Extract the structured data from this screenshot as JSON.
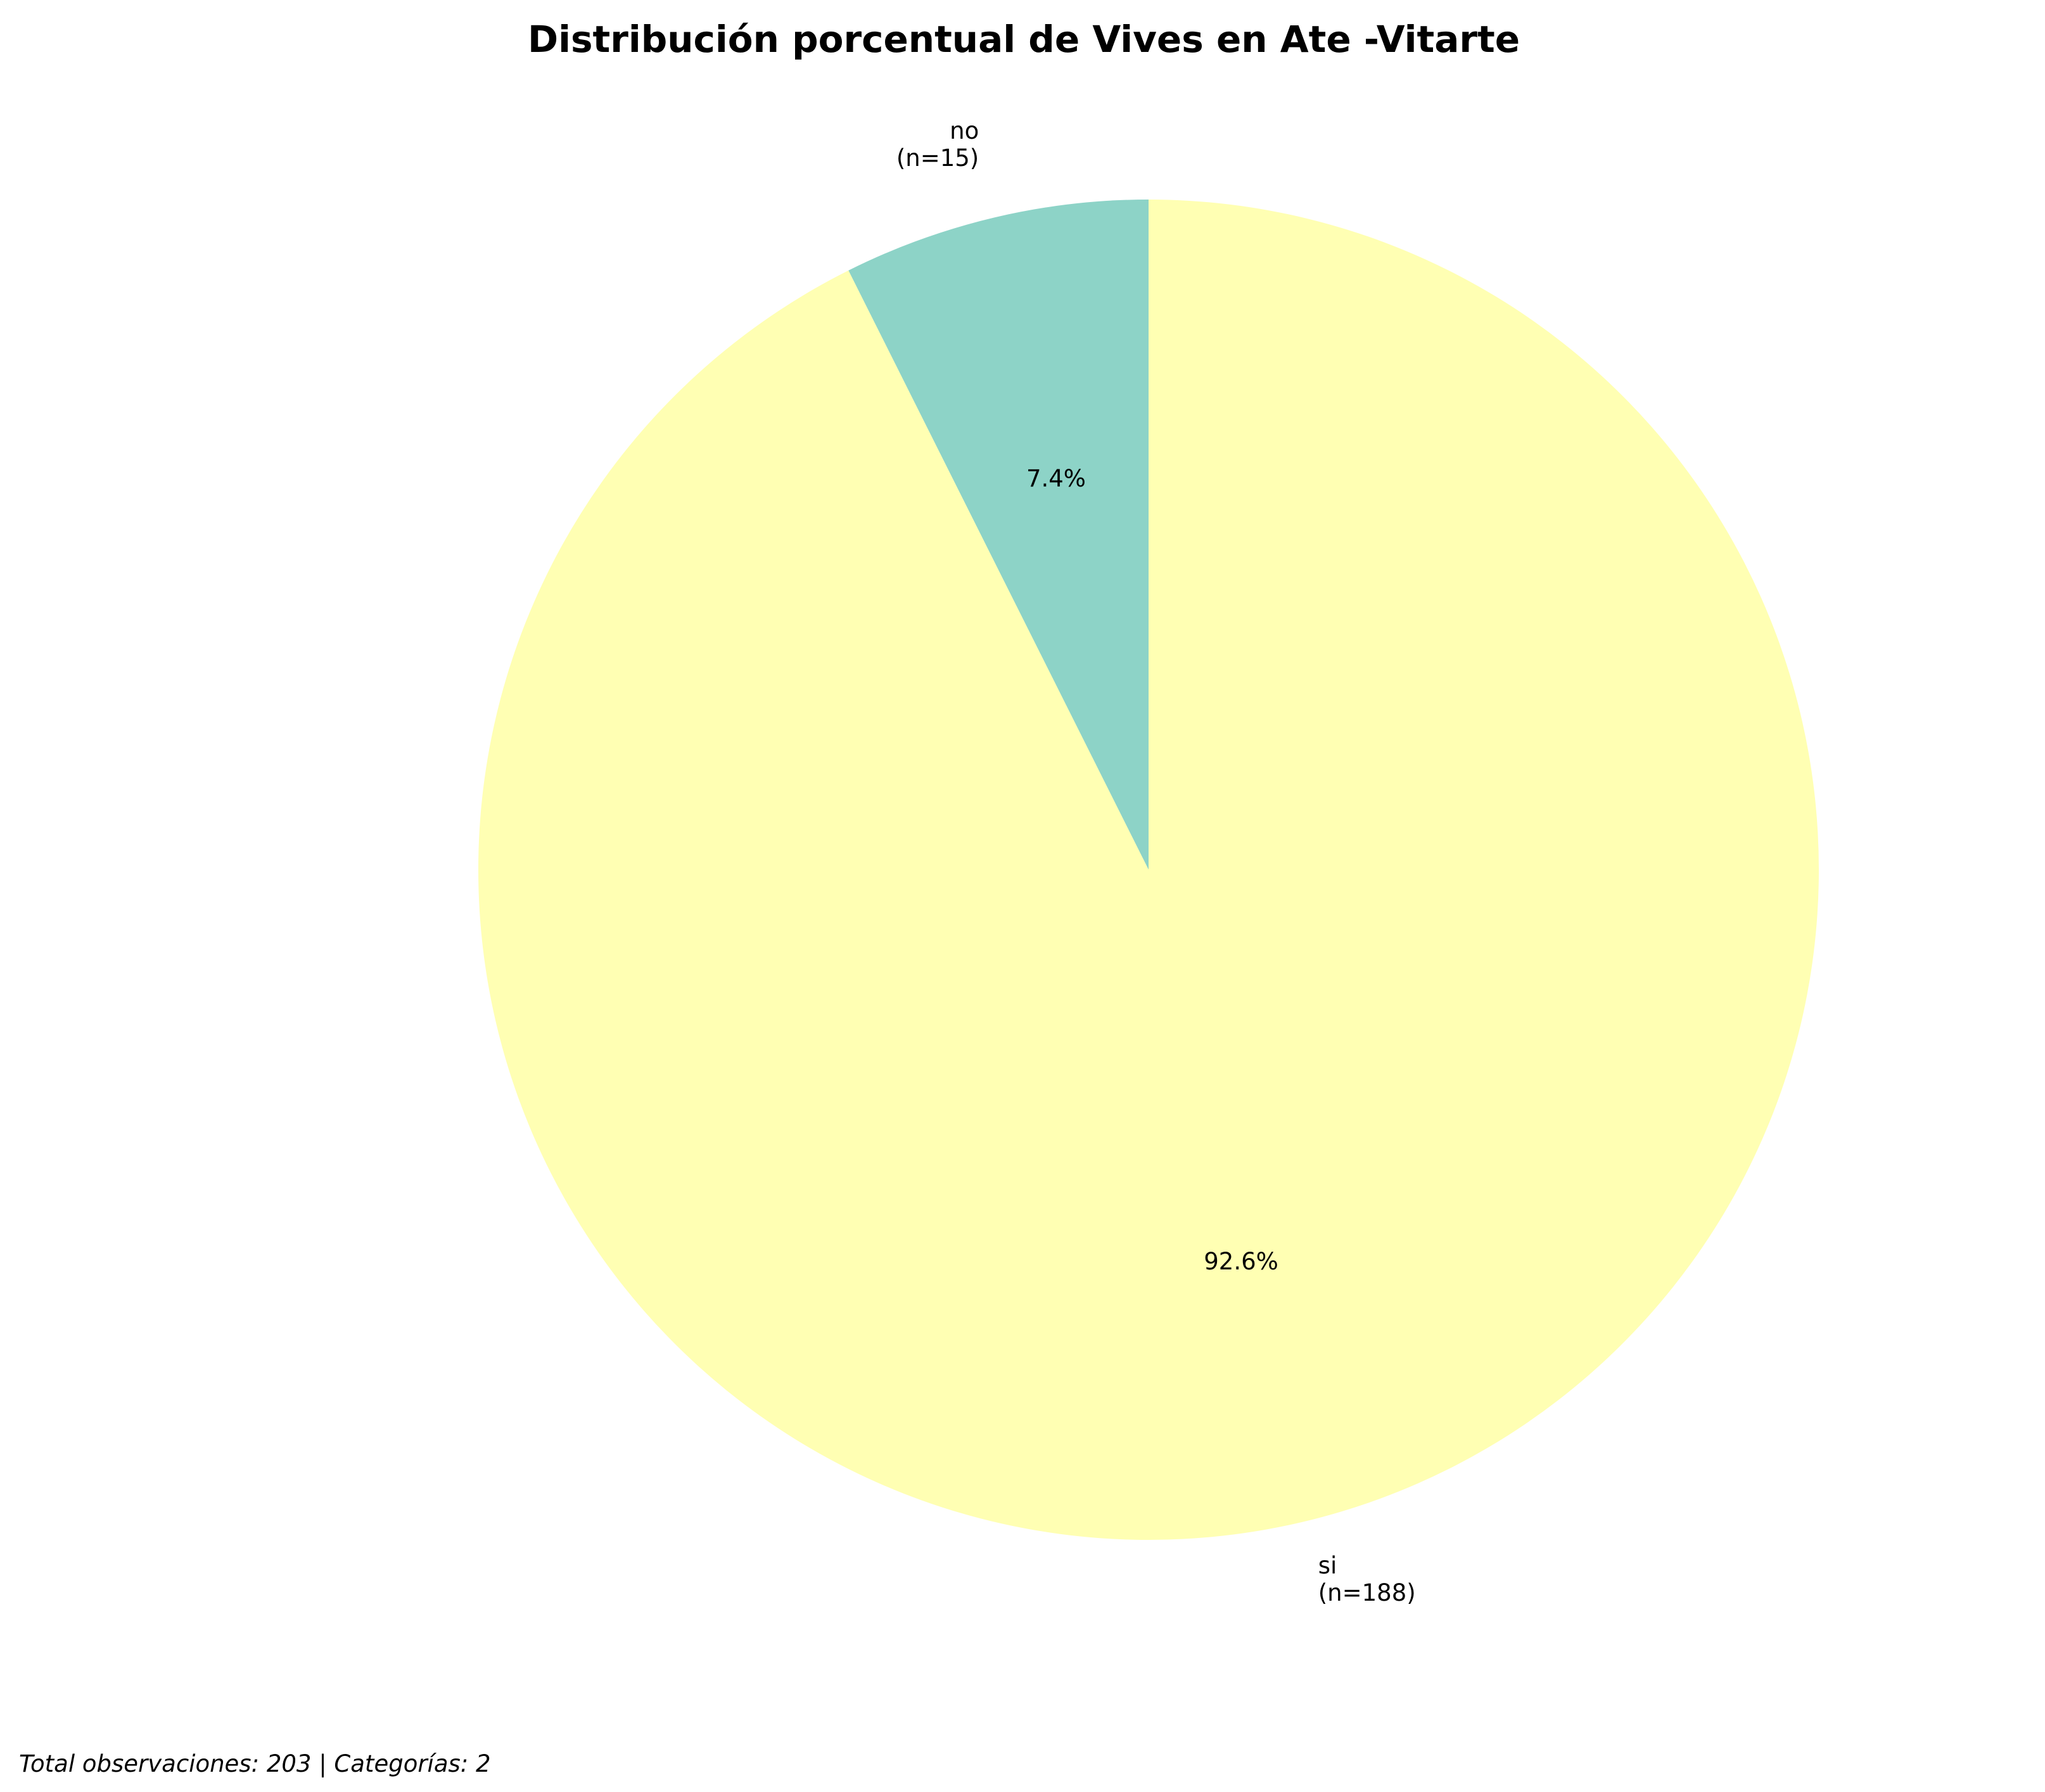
{
  "chart_data": {
    "type": "pie",
    "title": "Distribución porcentual de Vives en Ate -Vitarte",
    "categories": [
      "no",
      "si"
    ],
    "values": [
      15,
      188
    ],
    "category_labels": [
      "no",
      "si"
    ],
    "count_labels": [
      "(n=15)",
      "(n=188)"
    ],
    "percent_labels": [
      "7.4%",
      "92.6%"
    ],
    "colors": [
      "#8dd3c7",
      "#ffffb3"
    ],
    "start_angle_deg": 90,
    "direction": "counterclockwise",
    "legend": "none"
  },
  "footer": {
    "note": "Total observaciones: 203 | Categorías: 2"
  }
}
